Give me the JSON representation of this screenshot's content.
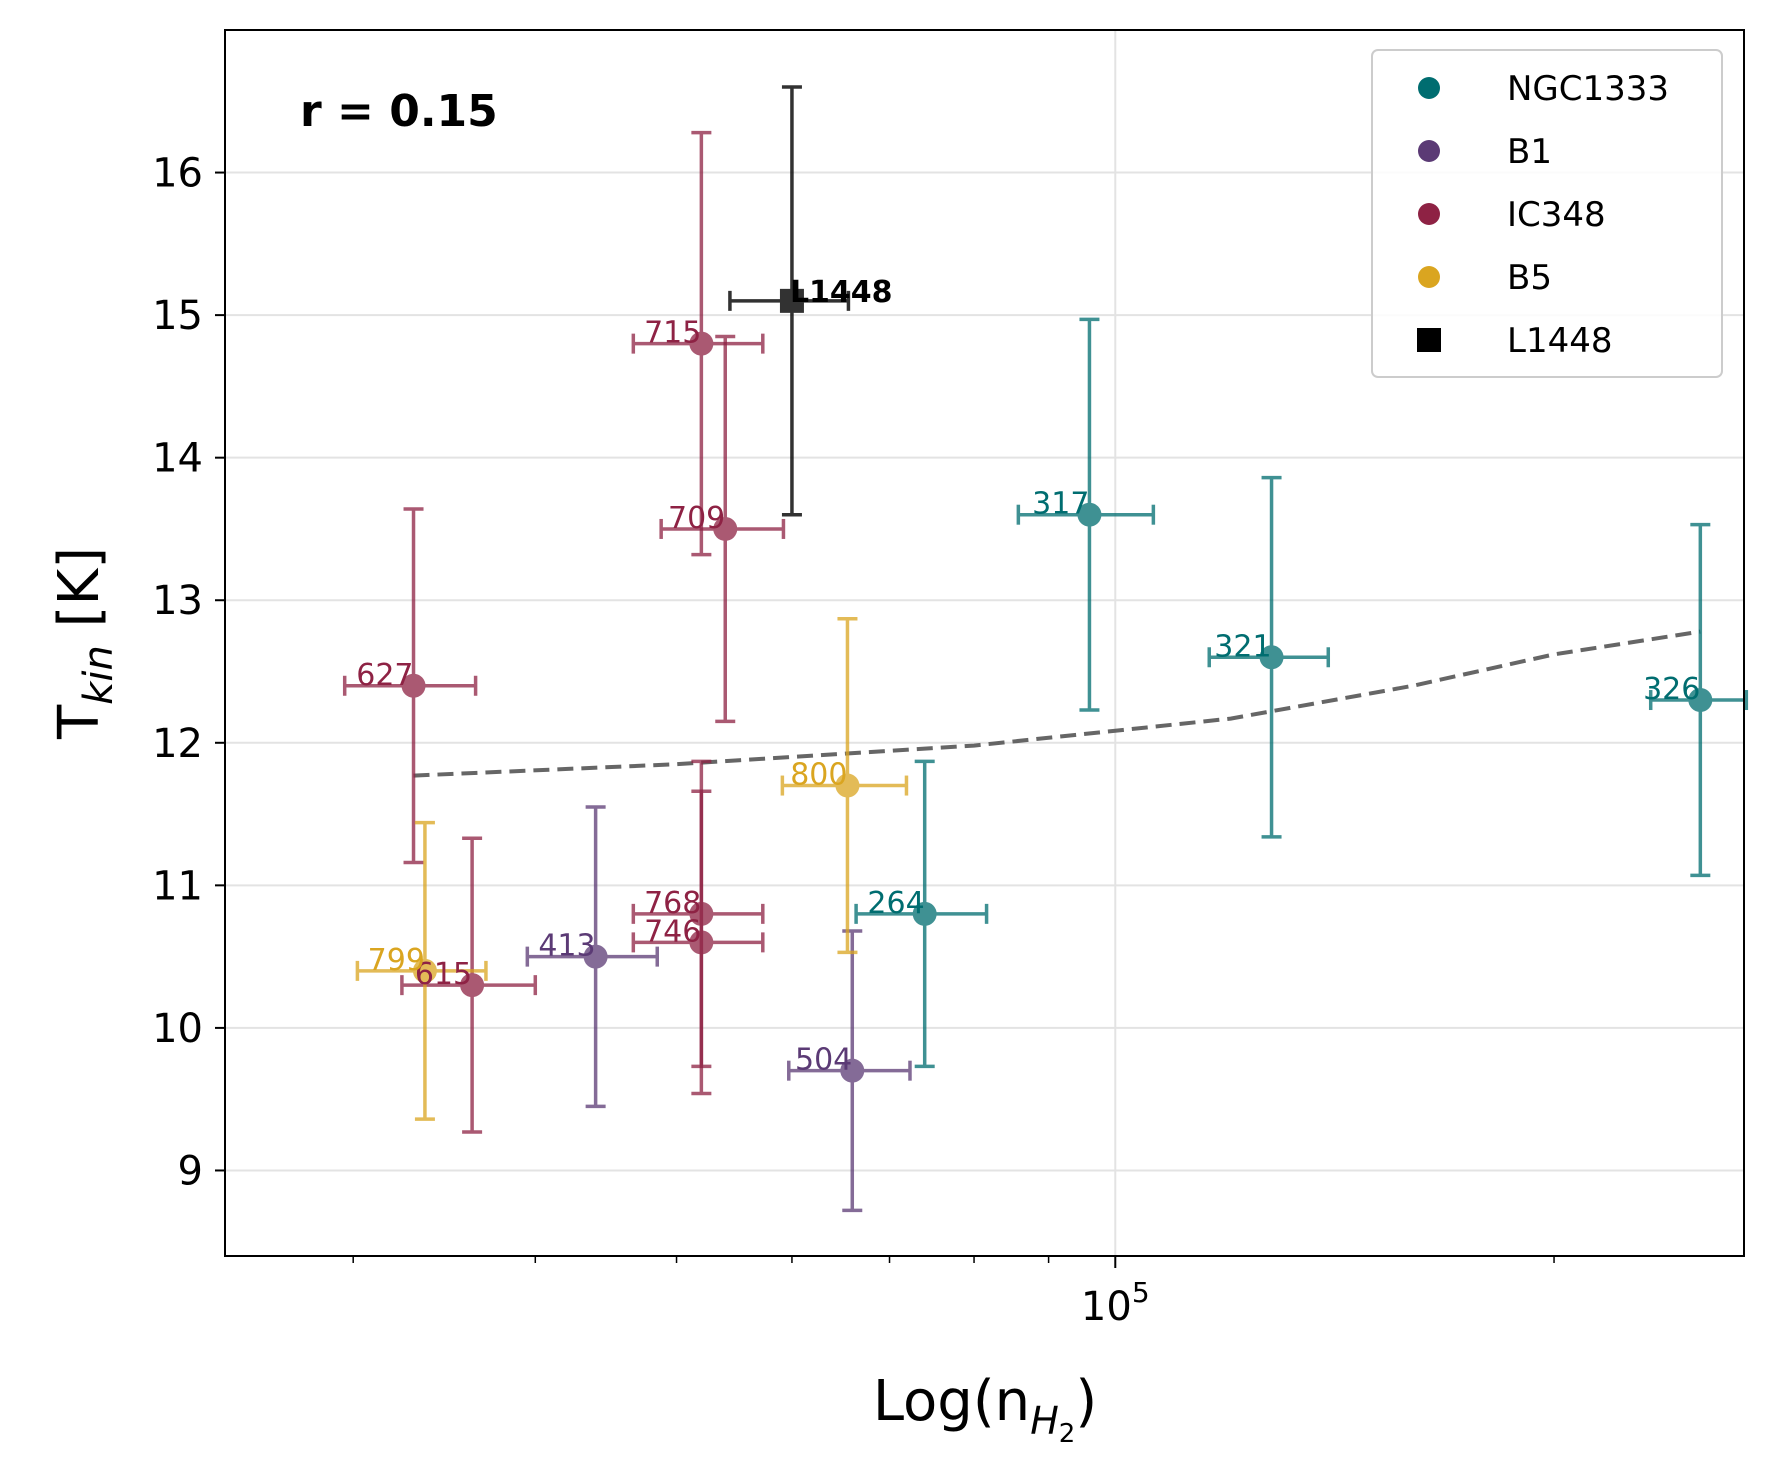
{
  "chart_data": {
    "type": "scatter",
    "title": "",
    "xlabel": "Log(n",
    "xlabel_sub": "H",
    "xlabel_sub2": "2",
    "xlabel_close": ")",
    "ylabel": "T",
    "ylabel_sub": "kin",
    "ylabel_unit": " [K]",
    "x_scale": "log",
    "xlim": [
      24500,
      270000
    ],
    "ylim": [
      8.4,
      17.0
    ],
    "yticks": [
      9,
      10,
      11,
      12,
      13,
      14,
      15,
      16
    ],
    "xtick_major": {
      "value": 100000,
      "base": "10",
      "exp": "5"
    },
    "xtick_minor": [
      30000,
      40000,
      50000,
      60000,
      70000,
      80000,
      90000,
      200000
    ],
    "grid": true,
    "legend_position": "top-right",
    "annotation": "r = 0.15",
    "fit": {
      "style": "dashed",
      "color": "#555555",
      "points": [
        [
          33000,
          11.77
        ],
        [
          50000,
          11.85
        ],
        [
          80000,
          11.98
        ],
        [
          120000,
          12.17
        ],
        [
          160000,
          12.4
        ],
        [
          200000,
          12.62
        ],
        [
          252000,
          12.78
        ]
      ]
    },
    "series": [
      {
        "name": "NGC1333",
        "color": "#006d70",
        "marker": "circle",
        "points": [
          {
            "label": "317",
            "x": 96000,
            "y": 13.6,
            "xerr": [
              10200,
              10200
            ],
            "yerr": [
              1.37,
              1.37
            ]
          },
          {
            "label": "321",
            "x": 128000,
            "y": 12.6,
            "xerr": [
              12000,
              12000
            ],
            "yerr": [
              1.26,
              1.26
            ]
          },
          {
            "label": "326",
            "x": 252000,
            "y": 12.3,
            "xerr": [
              19000,
              19000
            ],
            "yerr": [
              1.23,
              1.23
            ]
          },
          {
            "label": "264",
            "x": 74000,
            "y": 10.8,
            "xerr": [
              7600,
              7600
            ],
            "yerr": [
              1.07,
              1.07
            ]
          }
        ]
      },
      {
        "name": "B1",
        "color": "#5b3a75",
        "marker": "circle",
        "points": [
          {
            "label": "413",
            "x": 44000,
            "y": 10.5,
            "xerr": [
              4500,
              4500
            ],
            "yerr": [
              1.05,
              1.05
            ]
          },
          {
            "label": "504",
            "x": 66000,
            "y": 9.7,
            "xerr": [
              6300,
              6300
            ],
            "yerr": [
              0.98,
              0.98
            ]
          }
        ]
      },
      {
        "name": "IC348",
        "color": "#8e2244",
        "marker": "circle",
        "points": [
          {
            "label": "715",
            "x": 52000,
            "y": 14.8,
            "xerr": [
              5300,
              5300
            ],
            "yerr": [
              1.48,
              1.48
            ]
          },
          {
            "label": "709",
            "x": 54000,
            "y": 13.5,
            "xerr": [
              5200,
              5200
            ],
            "yerr": [
              1.35,
              1.35
            ]
          },
          {
            "label": "627",
            "x": 33000,
            "y": 12.4,
            "xerr": [
              3400,
              3400
            ],
            "yerr": [
              1.24,
              1.24
            ]
          },
          {
            "label": "768",
            "x": 52000,
            "y": 10.8,
            "xerr": [
              5300,
              5300
            ],
            "yerr": [
              1.07,
              1.07
            ]
          },
          {
            "label": "746",
            "x": 52000,
            "y": 10.6,
            "xerr": [
              5300,
              5300
            ],
            "yerr": [
              1.06,
              1.06
            ]
          },
          {
            "label": "615",
            "x": 36200,
            "y": 10.3,
            "xerr": [
              3800,
              3800
            ],
            "yerr": [
              1.03,
              1.03
            ]
          }
        ]
      },
      {
        "name": "B5",
        "color": "#daa520",
        "marker": "circle",
        "points": [
          {
            "label": "800",
            "x": 65500,
            "y": 11.7,
            "xerr": [
              6400,
              6400
            ],
            "yerr": [
              1.17,
              1.17
            ]
          },
          {
            "label": "799",
            "x": 33600,
            "y": 10.4,
            "xerr": [
              3400,
              3400
            ],
            "yerr": [
              1.04,
              1.04
            ]
          }
        ]
      },
      {
        "name": "L1448",
        "color": "#000000",
        "marker": "square",
        "points": [
          {
            "label": "L1448",
            "x": 60000,
            "y": 15.1,
            "xerr": [
              5600,
              5600
            ],
            "yerr": [
              1.5,
              1.5
            ]
          }
        ]
      }
    ]
  }
}
